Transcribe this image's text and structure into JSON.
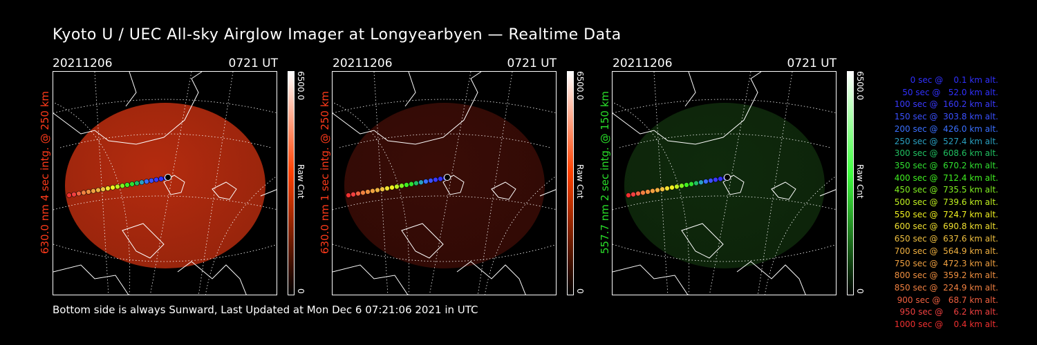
{
  "title": "Kyoto U / UEC All-sky Airglow Imager at Longyearbyen — Realtime Data",
  "panels": [
    {
      "date": "20211206",
      "time": "0721 UT",
      "label": "630.0 nm 4 sec intg. @ 250 km",
      "label_color": "#ff3a1a",
      "cbar_max": "6500.0",
      "cbar_min": "0",
      "cbar_unit": "Raw Cnt",
      "cbar_color": "#ff4000",
      "disk_color": "#c83010",
      "disk_opacity": 0.9
    },
    {
      "date": "20211206",
      "time": "0721 UT",
      "label": "630.0 nm 1 sec intg. @ 250 km",
      "label_color": "#ff3a1a",
      "cbar_max": "6500.0",
      "cbar_min": "0",
      "cbar_unit": "Raw Cnt",
      "cbar_color": "#ff4000",
      "disk_color": "#3a0c06",
      "disk_opacity": 1
    },
    {
      "date": "20211206",
      "time": "0721 UT",
      "label": "557.7 nm 2 sec intg. @ 150 km",
      "label_color": "#2adf2a",
      "cbar_max": "6500.0",
      "cbar_min": "0",
      "cbar_unit": "Raw Cnt",
      "cbar_color": "#40ff40",
      "disk_color": "#0f2a0c",
      "disk_opacity": 1
    }
  ],
  "footer": "Bottom side is always Sunward, Last Updated at Mon Dec  6 07:21:06 2021 in UTC",
  "legend": [
    {
      "text": "   0 sec @    0.1 km alt.",
      "color": "#3030ff"
    },
    {
      "text": "  50 sec @   52.0 km alt.",
      "color": "#3030ff"
    },
    {
      "text": " 100 sec @  160.2 km alt.",
      "color": "#3a3aff"
    },
    {
      "text": " 150 sec @  303.8 km alt.",
      "color": "#3a50ff"
    },
    {
      "text": " 200 sec @  426.0 km alt.",
      "color": "#3a70ff"
    },
    {
      "text": " 250 sec @  527.4 km alt.",
      "color": "#2aa0c0"
    },
    {
      "text": " 300 sec @  608.6 km alt.",
      "color": "#20c060"
    },
    {
      "text": " 350 sec @  670.2 km alt.",
      "color": "#30e030"
    },
    {
      "text": " 400 sec @  712.4 km alt.",
      "color": "#40f020"
    },
    {
      "text": " 450 sec @  735.5 km alt.",
      "color": "#80f020"
    },
    {
      "text": " 500 sec @  739.6 km alt.",
      "color": "#c0f020"
    },
    {
      "text": " 550 sec @  724.7 km alt.",
      "color": "#f0f020"
    },
    {
      "text": " 600 sec @  690.8 km alt.",
      "color": "#f0e030"
    },
    {
      "text": " 650 sec @  637.6 km alt.",
      "color": "#f0c040"
    },
    {
      "text": " 700 sec @  564.9 km alt.",
      "color": "#f0b040"
    },
    {
      "text": " 750 sec @  472.3 km alt.",
      "color": "#f0a040"
    },
    {
      "text": " 800 sec @  359.2 km alt.",
      "color": "#f09040"
    },
    {
      "text": " 850 sec @  224.9 km alt.",
      "color": "#f08040"
    },
    {
      "text": " 900 sec @   68.7 km alt.",
      "color": "#f06040"
    },
    {
      "text": " 950 sec @    6.2 km alt.",
      "color": "#f04040"
    },
    {
      "text": "1000 sec @    0.4 km alt.",
      "color": "#f03030"
    }
  ],
  "track_colors": [
    "#3030ff",
    "#3030ff",
    "#3a3aff",
    "#3a50ff",
    "#3a70ff",
    "#2aa0c0",
    "#20c060",
    "#30e030",
    "#40f020",
    "#80f020",
    "#c0f020",
    "#f0f020",
    "#f0e030",
    "#f0c040",
    "#f0b040",
    "#f0a040",
    "#f09040",
    "#f08040",
    "#f06040",
    "#f04040",
    "#f03030"
  ]
}
